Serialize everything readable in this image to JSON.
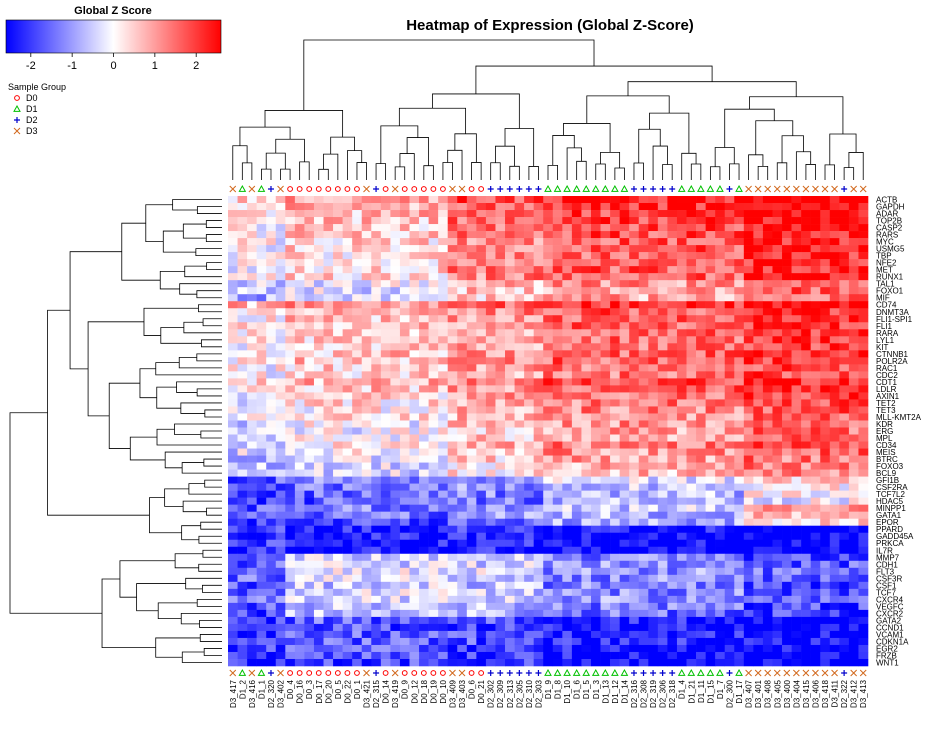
{
  "chart_data": {
    "type": "heatmap",
    "title": "Heatmap of Expression (Global Z-Score)",
    "colorbar": {
      "title": "Global Z Score",
      "range": [
        -2.6,
        2.6
      ],
      "ticks": [
        -2,
        -1,
        0,
        1,
        2
      ],
      "tick_labels": [
        "-2",
        "-1",
        "0",
        "1",
        "2"
      ],
      "colors": {
        "low": "#0000ff",
        "mid": "#ffffff",
        "high": "#ff0000"
      }
    },
    "sample_group_legend": {
      "title": "Sample Group",
      "groups": [
        {
          "label": "D0",
          "symbol": "circle",
          "color": "#ff0000"
        },
        {
          "label": "D1",
          "symbol": "triangle",
          "color": "#00c000"
        },
        {
          "label": "D2",
          "symbol": "plus",
          "color": "#0000cc"
        },
        {
          "label": "D3",
          "symbol": "cross",
          "color": "#d2691e"
        }
      ]
    },
    "columns": [
      "D3_417",
      "D1_2",
      "D3_416",
      "D1_1",
      "D2_320",
      "D3_402",
      "D0_4",
      "D0_16",
      "D0_3",
      "D0_17",
      "D0_20",
      "D0_5",
      "D0_22",
      "D0_1",
      "D3_421",
      "D2_315",
      "D0_14",
      "D3_419",
      "D0_9",
      "D0_12",
      "D0_18",
      "D0_19",
      "D0_10",
      "D3_409",
      "D3_403",
      "D0_6",
      "D0_21",
      "D2_302",
      "D2_309",
      "D2_313",
      "D2_305",
      "D2_310",
      "D2_303",
      "D1_9",
      "D1_8",
      "D1_10",
      "D1_6",
      "D1_5",
      "D1_3",
      "D1_13",
      "D1_12",
      "D1_14",
      "D2_316",
      "D2_308",
      "D2_319",
      "D2_306",
      "D2_318",
      "D1_4",
      "D1_21",
      "D1_11",
      "D1_15",
      "D1_7",
      "D2_300",
      "D1_17",
      "D3_407",
      "D3_401",
      "D3_408",
      "D3_405",
      "D3_400",
      "D3_404",
      "D3_415",
      "D3_406",
      "D3_418",
      "D3_411",
      "D2_322",
      "D3_412",
      "D3_413"
    ],
    "column_groups": [
      "D3",
      "D1",
      "D3",
      "D1",
      "D2",
      "D3",
      "D0",
      "D0",
      "D0",
      "D0",
      "D0",
      "D0",
      "D0",
      "D0",
      "D3",
      "D2",
      "D0",
      "D3",
      "D0",
      "D0",
      "D0",
      "D0",
      "D0",
      "D3",
      "D3",
      "D0",
      "D0",
      "D2",
      "D2",
      "D2",
      "D2",
      "D2",
      "D2",
      "D1",
      "D1",
      "D1",
      "D1",
      "D1",
      "D1",
      "D1",
      "D1",
      "D1",
      "D2",
      "D2",
      "D2",
      "D2",
      "D2",
      "D1",
      "D1",
      "D1",
      "D1",
      "D1",
      "D2",
      "D1",
      "D3",
      "D3",
      "D3",
      "D3",
      "D3",
      "D3",
      "D3",
      "D3",
      "D3",
      "D3",
      "D2",
      "D3",
      "D3"
    ],
    "rows": [
      "ACTB",
      "GAPDH",
      "ADAR",
      "TOP2B",
      "CASP2",
      "RARS",
      "MYC",
      "USMG5",
      "TBP",
      "NFE2",
      "MET",
      "RUNX1",
      "TAL1",
      "FOXO1",
      "MIF",
      "CD74",
      "DNMT3A",
      "FLI1-SPI1",
      "FLI1",
      "RARA",
      "LYL1",
      "KIT",
      "CTNNB1",
      "POLR2A",
      "RAC1",
      "CDC2",
      "CDT1",
      "LDLR",
      "AXIN1",
      "TET2",
      "TET3",
      "MLL-KMT2A",
      "KDR",
      "ERG",
      "MPL",
      "CD34",
      "MEIS",
      "BTRC",
      "FOXO3",
      "BCL9",
      "GFI1B",
      "CSF2RA",
      "TCF7L2",
      "HDAC5",
      "MINPP1",
      "GATA1",
      "EPOR",
      "PPARD",
      "GADD45A",
      "PRKCA",
      "IL7R",
      "MMP7",
      "CDH1",
      "FLT3",
      "CSF3R",
      "CSF1",
      "TCF7",
      "CXCR4",
      "VEGFC",
      "CXCR2",
      "GATA2",
      "CCND1",
      "VCAM1",
      "CDKN1A",
      "EGR2",
      "FRZB",
      "WNT1"
    ],
    "row_profiles": [
      {
        "type": "a",
        "base": 1.5
      },
      {
        "type": "a",
        "base": 1.4
      },
      {
        "type": "a",
        "base": 1.2
      },
      {
        "type": "a",
        "base": 1.1
      },
      {
        "type": "a",
        "base": 1.0
      },
      {
        "type": "a",
        "base": 1.0
      },
      {
        "type": "a",
        "base": 0.9
      },
      {
        "type": "a",
        "base": 0.9
      },
      {
        "type": "a",
        "base": 0.8
      },
      {
        "type": "a",
        "base": 0.8
      },
      {
        "type": "a",
        "base": 0.9
      },
      {
        "type": "a",
        "base": 0.9
      },
      {
        "type": "a",
        "base": 0.3
      },
      {
        "type": "a",
        "base": 0.2
      },
      {
        "type": "a",
        "base": 0.1
      },
      {
        "type": "b",
        "base": 1.6
      },
      {
        "type": "b",
        "base": 1.1
      },
      {
        "type": "b",
        "base": 1.0
      },
      {
        "type": "b",
        "base": 1.0
      },
      {
        "type": "b",
        "base": 0.9
      },
      {
        "type": "b",
        "base": 0.9
      },
      {
        "type": "b",
        "base": 0.8
      },
      {
        "type": "b",
        "base": 1.0
      },
      {
        "type": "b",
        "base": 1.0
      },
      {
        "type": "b",
        "base": 0.8
      },
      {
        "type": "b",
        "base": 0.8
      },
      {
        "type": "b",
        "base": 1.2
      },
      {
        "type": "b",
        "base": 1.0
      },
      {
        "type": "b",
        "base": 0.8
      },
      {
        "type": "b",
        "base": 0.7
      },
      {
        "type": "b",
        "base": 0.6
      },
      {
        "type": "b",
        "base": 0.6
      },
      {
        "type": "c",
        "base": 0.7
      },
      {
        "type": "c",
        "base": 0.6
      },
      {
        "type": "c",
        "base": 0.6
      },
      {
        "type": "c",
        "base": 0.9
      },
      {
        "type": "c",
        "base": 0.7
      },
      {
        "type": "c",
        "base": 0.5
      },
      {
        "type": "c",
        "base": 0.4
      },
      {
        "type": "c",
        "base": 0.3
      },
      {
        "type": "d",
        "base": 0.0
      },
      {
        "type": "d",
        "base": -0.2
      },
      {
        "type": "d",
        "base": -0.3
      },
      {
        "type": "d",
        "base": -0.4
      },
      {
        "type": "e",
        "base": 0.2
      },
      {
        "type": "e",
        "base": 0.0
      },
      {
        "type": "e",
        "base": -0.3
      },
      {
        "type": "f",
        "base": -0.9
      },
      {
        "type": "f",
        "base": -1.0
      },
      {
        "type": "f",
        "base": -1.0
      },
      {
        "type": "f",
        "base": -1.1
      },
      {
        "type": "g",
        "base": -0.4
      },
      {
        "type": "g",
        "base": -0.3
      },
      {
        "type": "g",
        "base": -0.2
      },
      {
        "type": "g",
        "base": -0.3
      },
      {
        "type": "g",
        "base": -0.4
      },
      {
        "type": "g",
        "base": -0.3
      },
      {
        "type": "g",
        "base": -0.2
      },
      {
        "type": "g",
        "base": -0.5
      },
      {
        "type": "g",
        "base": -0.6
      },
      {
        "type": "h",
        "base": -1.0
      },
      {
        "type": "h",
        "base": -1.1
      },
      {
        "type": "h",
        "base": -1.0
      },
      {
        "type": "h",
        "base": -0.9
      },
      {
        "type": "h",
        "base": -1.0
      },
      {
        "type": "h",
        "base": -1.1
      },
      {
        "type": "h",
        "base": -1.2
      }
    ]
  }
}
